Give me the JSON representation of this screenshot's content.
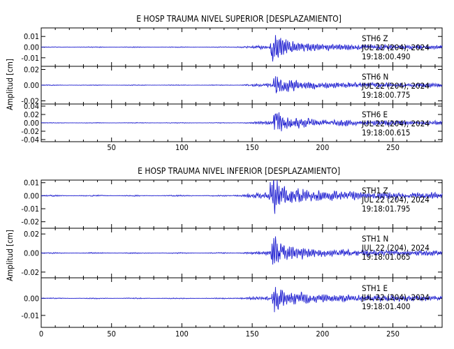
{
  "chart_data": [
    {
      "type": "line",
      "title": "E HOSP TRAUMA NIVEL SUPERIOR [DESPLAZAMIENTO]",
      "ylabel": "Amplitud [cm]",
      "xlim": [
        0,
        285
      ],
      "xticks": [
        50,
        100,
        150,
        200,
        250
      ],
      "line_color": "#1f1fd0",
      "panels": [
        {
          "station": "STH6",
          "component": "Z",
          "date": "JUL 22 (204), 2024",
          "time": "19:18:00.490",
          "ylim": [
            -0.018,
            0.018
          ],
          "yticks": [
            "0.01",
            "0.00",
            "-0.01"
          ],
          "ytick_values": [
            0.01,
            0.0,
            -0.01
          ],
          "onset": 135,
          "peak_time": 166,
          "peak_amp": 0.017,
          "noise": 0.0004,
          "seed": 11
        },
        {
          "station": "STH6",
          "component": "N",
          "date": "JUL 22 (204), 2024",
          "time": "19:18:00.775",
          "ylim": [
            -0.024,
            0.024
          ],
          "yticks": [
            "0.02",
            "0.00",
            "-0.02"
          ],
          "ytick_values": [
            0.02,
            0.0,
            -0.02
          ],
          "onset": 138,
          "peak_time": 168,
          "peak_amp": 0.02,
          "noise": 0.0005,
          "seed": 23
        },
        {
          "station": "STH6",
          "component": "E",
          "date": "JUL 22 (204), 2024",
          "time": "19:18:00.615",
          "ylim": [
            -0.045,
            0.045
          ],
          "yticks": [
            "0.04",
            "0.02",
            "0.00",
            "-0.02",
            "-0.04"
          ],
          "ytick_values": [
            0.04,
            0.02,
            0.0,
            -0.02,
            -0.04
          ],
          "onset": 140,
          "peak_time": 168,
          "peak_amp": 0.04,
          "noise": 0.0009,
          "seed": 37
        }
      ]
    },
    {
      "type": "line",
      "title": "E HOSP TRAUMA NIVEL INFERIOR [DESPLAZAMIENTO]",
      "ylabel": "Amplitud [cm]",
      "xlim": [
        0,
        285
      ],
      "xticks": [
        0,
        50,
        100,
        150,
        200,
        250
      ],
      "line_color": "#1f1fd0",
      "panels": [
        {
          "station": "STH1",
          "component": "Z",
          "date": "JUL 22 (204), 2024",
          "time": "19:18:01.795",
          "ylim": [
            -0.025,
            0.012
          ],
          "yticks": [
            "0.01",
            "0.00",
            "-0.01",
            "-0.02"
          ],
          "ytick_values": [
            0.01,
            0.0,
            -0.01,
            -0.02
          ],
          "onset": 135,
          "peak_time": 165,
          "peak_amp": 0.02,
          "noise": 0.0005,
          "seed": 51
        },
        {
          "station": "STH1",
          "component": "N",
          "date": "JUL 22 (204), 2024",
          "time": "19:18:01.065",
          "ylim": [
            -0.026,
            0.026
          ],
          "yticks": [
            "0.02",
            "0.00",
            "-0.02"
          ],
          "ytick_values": [
            0.02,
            0.0,
            -0.02
          ],
          "onset": 138,
          "peak_time": 166,
          "peak_amp": 0.022,
          "noise": 0.0006,
          "seed": 67
        },
        {
          "station": "STH1",
          "component": "E",
          "date": "JUL 22 (204), 2024",
          "time": "19:18:01.400",
          "ylim": [
            -0.017,
            0.012
          ],
          "yticks": [
            "0.00",
            "-0.01"
          ],
          "ytick_values": [
            0.0,
            -0.01
          ],
          "onset": 135,
          "peak_time": 167,
          "peak_amp": 0.012,
          "noise": 0.0003,
          "seed": 83
        }
      ]
    }
  ]
}
